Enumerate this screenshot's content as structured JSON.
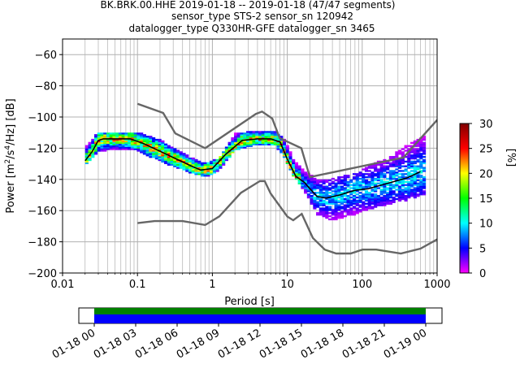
{
  "title_lines": [
    "BK.BRK.00.HHE   2019-01-18 -- 2019-01-18  (47/47 segments)",
    "sensor_type STS-2 sensor_sn 120942",
    "datalogger_type Q330HR-GFE datalogger_sn 3465"
  ],
  "chart_data": {
    "type": "heatmap",
    "xlabel": "Period [s]",
    "ylabel_parts": {
      "pre": "Power [m",
      "sup1": "2",
      "mid": "/s",
      "sup2": "4",
      "post": "/Hz] [dB]"
    },
    "xscale": "log",
    "xlim": [
      0.01,
      1000
    ],
    "ylim": [
      -200,
      -50
    ],
    "x_ticks": [
      0.01,
      0.1,
      1,
      10,
      100,
      1000
    ],
    "x_tick_labels": [
      "0.01",
      "0.1",
      "1",
      "10",
      "100",
      "1000"
    ],
    "y_ticks": [
      -200,
      -180,
      -160,
      -140,
      -120,
      -100,
      -80,
      -60
    ],
    "y_tick_labels": [
      "−200",
      "−180",
      "−160",
      "−140",
      "−120",
      "−100",
      "−80",
      "−60"
    ],
    "grid": true,
    "colorbar": {
      "label": "[%]",
      "range": [
        0,
        30
      ],
      "ticks": [
        0,
        5,
        10,
        15,
        20,
        25,
        30
      ],
      "tick_labels": [
        "0",
        "5",
        "10",
        "15",
        "20",
        "25",
        "30"
      ],
      "colormap": [
        "#ff00ff",
        "#0000ff",
        "#00ffff",
        "#00ff00",
        "#ffff00",
        "#ff0000",
        "#800000"
      ]
    },
    "noise_models": {
      "color": "#666666",
      "high": {
        "x": [
          0.1,
          0.22,
          0.32,
          0.8,
          3.8,
          4.6,
          6.3,
          7.9,
          15.4,
          20,
          354.8,
          10000
        ],
        "y": [
          -91.5,
          -97.4,
          -110.5,
          -120,
          -98,
          -96.5,
          -101,
          -113.5,
          -120,
          -138.5,
          -126,
          -48.5
        ]
      },
      "low": {
        "x": [
          0.1,
          0.17,
          0.4,
          0.8,
          1.24,
          2.4,
          4.3,
          5,
          6,
          10,
          12,
          15.6,
          21.9,
          31.6,
          45,
          70,
          101,
          154,
          328,
          600,
          10000
        ],
        "y": [
          -168,
          -166.7,
          -166.7,
          -169.2,
          -163.7,
          -148.6,
          -141.1,
          -141.1,
          -149,
          -163.8,
          -166.2,
          -162.1,
          -177.5,
          -185,
          -187.5,
          -187.5,
          -185,
          -185,
          -187.5,
          -184.4,
          -151.9
        ]
      }
    },
    "mode": {
      "color": "#000000",
      "x": [
        0.02,
        0.025,
        0.03,
        0.035,
        0.05,
        0.08,
        0.12,
        0.2,
        0.3,
        0.5,
        0.7,
        1.0,
        1.5,
        2.5,
        4,
        6,
        8,
        10,
        13,
        17,
        20,
        25,
        33,
        50,
        80,
        120,
        200,
        400,
        600
      ],
      "y": [
        -128,
        -122,
        -115,
        -114,
        -114,
        -114,
        -117,
        -122,
        -126,
        -131,
        -134,
        -133,
        -124,
        -115,
        -114,
        -114,
        -116,
        -127,
        -138,
        -142,
        -146,
        -151,
        -152,
        -150,
        -147,
        -146,
        -143,
        -139,
        -135
      ]
    },
    "band": {
      "x": [
        0.02,
        0.03,
        0.05,
        0.1,
        0.2,
        0.5,
        0.8,
        1.2,
        2,
        4,
        7,
        9,
        12,
        18,
        25,
        40,
        70,
        120,
        250,
        400,
        700
      ],
      "lo": [
        -132,
        -123,
        -121,
        -122,
        -129,
        -136,
        -139,
        -135,
        -122,
        -118,
        -119,
        -126,
        -138,
        -150,
        -163,
        -167,
        -164,
        -160,
        -156,
        -154,
        -150
      ],
      "hi": [
        -120,
        -110,
        -110,
        -110,
        -115,
        -126,
        -130,
        -127,
        -111,
        -109,
        -110,
        -114,
        -127,
        -136,
        -140,
        -140,
        -137,
        -132,
        -125,
        -118,
        -112
      ]
    }
  },
  "timeline": {
    "tick_labels": [
      "01-18 00",
      "01-18 03",
      "01-18 06",
      "01-18 09",
      "01-18 12",
      "01-18 15",
      "01-18 18",
      "01-18 21",
      "01-19 00"
    ],
    "data_coverage_color": "#008000",
    "psd_coverage_color": "#0000ff",
    "coverage_fraction": 1.0
  }
}
